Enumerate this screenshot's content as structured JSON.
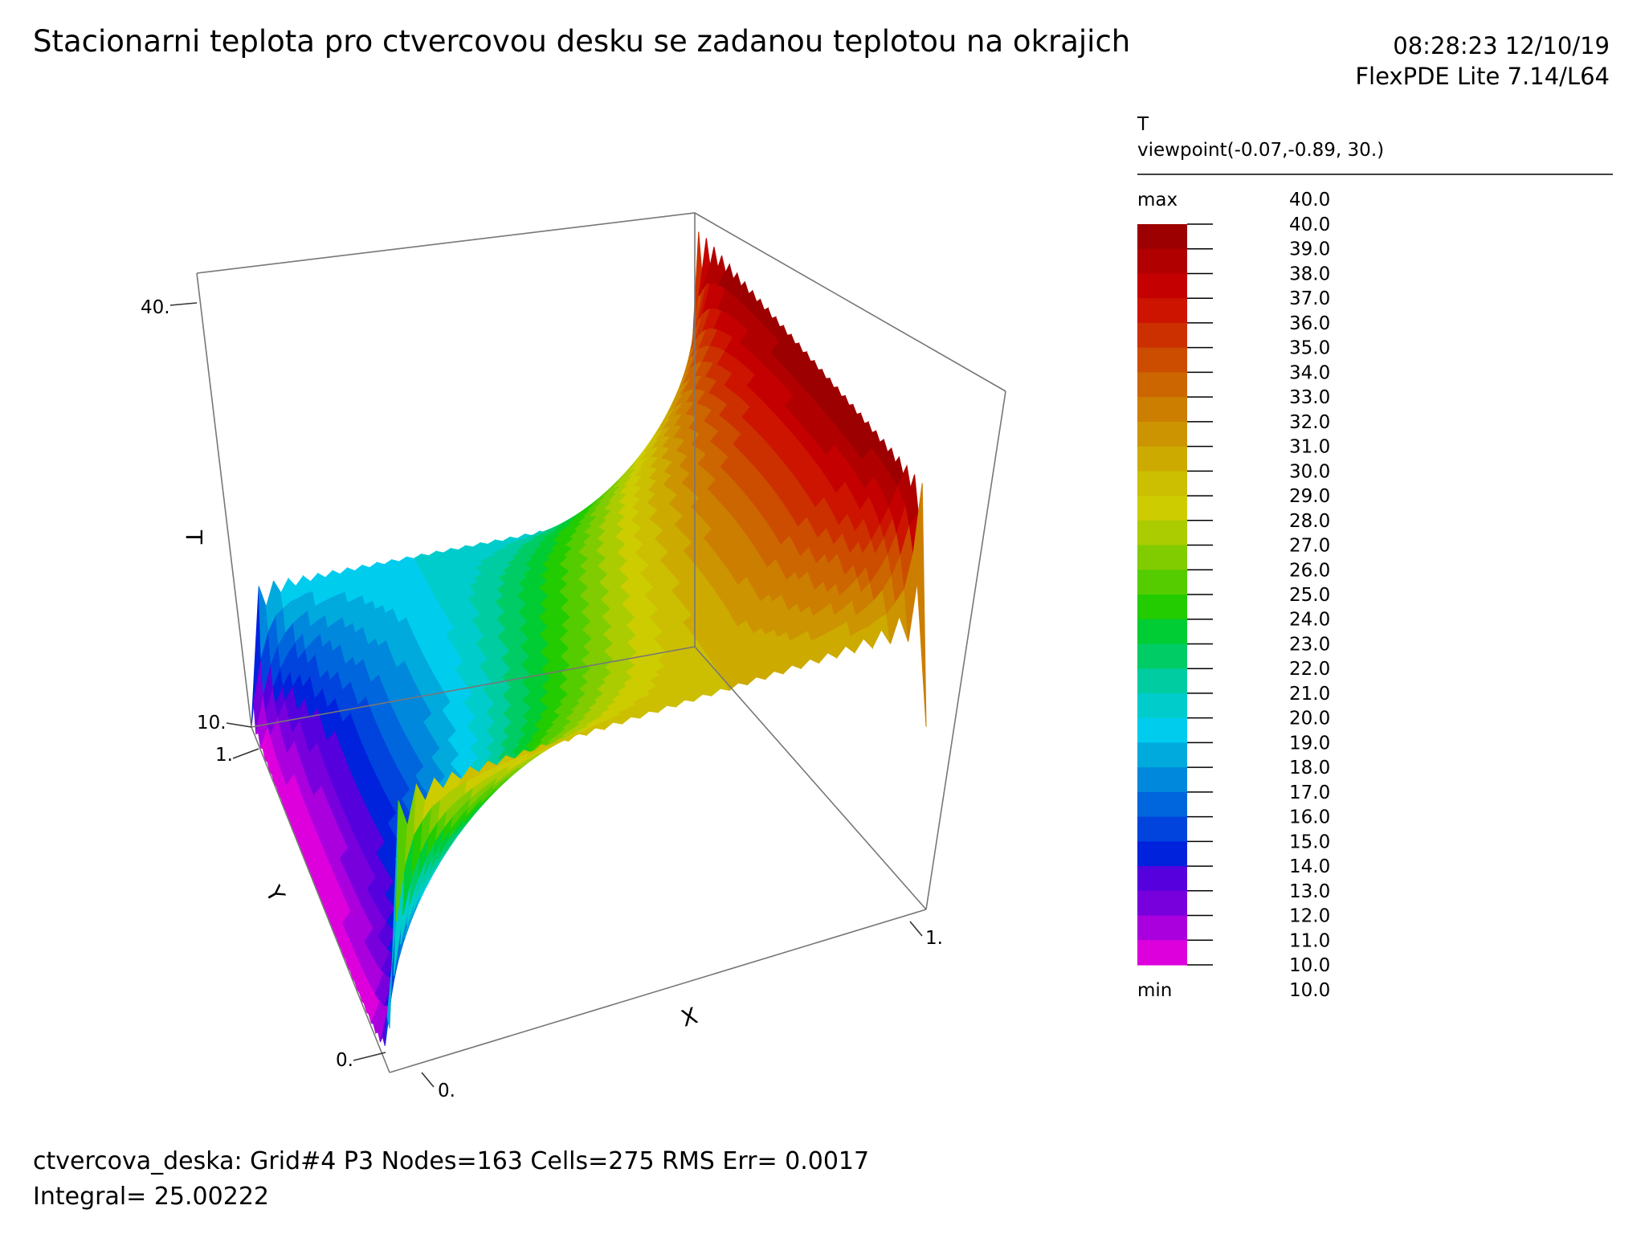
{
  "header": {
    "title": "Stacionarni teplota pro ctvercovou desku se zadanou teplotou na okrajich",
    "timestamp": "08:28:23 12/10/19",
    "app_version": "FlexPDE Lite 7.14/L64"
  },
  "legend": {
    "variable": "T",
    "viewpoint": "viewpoint(-0.07,-0.89, 30.)",
    "max_label": "max",
    "max_value": "40.0",
    "min_label": "min",
    "min_value": "10.0",
    "levels": [
      "40.0",
      "39.0",
      "38.0",
      "37.0",
      "36.0",
      "35.0",
      "34.0",
      "33.0",
      "32.0",
      "31.0",
      "30.0",
      "29.0",
      "28.0",
      "27.0",
      "26.0",
      "25.0",
      "24.0",
      "23.0",
      "22.0",
      "21.0",
      "20.0",
      "19.0",
      "18.0",
      "17.0",
      "16.0",
      "15.0",
      "14.0",
      "13.0",
      "12.0",
      "11.0",
      "10.0"
    ],
    "colors": [
      "#9c0000",
      "#b00000",
      "#c40000",
      "#cc1400",
      "#cc3000",
      "#cc4c00",
      "#cc6600",
      "#cc7e00",
      "#cc9400",
      "#ccaa00",
      "#ccbe00",
      "#cccc00",
      "#aacc00",
      "#80cc00",
      "#55cc00",
      "#22cc00",
      "#00cc33",
      "#00cc66",
      "#00cca2",
      "#00cccc",
      "#00ccee",
      "#00aadd",
      "#0088dd",
      "#0066dd",
      "#0044dd",
      "#0022dd",
      "#5500dd",
      "#7700dd",
      "#aa00dd",
      "#dd00dd",
      "#ff00ee"
    ]
  },
  "axes": {
    "t_label": "T",
    "t_tick_top": "40.",
    "t_tick_bottom": "10.",
    "y_label": "Y",
    "y_tick_far": "1.",
    "y_tick_near": "0.",
    "x_label": "X",
    "x_tick_left": "0.",
    "x_tick_right": "1."
  },
  "chart_data": {
    "type": "surface",
    "title": "Stacionarni teplota pro ctvercovou desku se zadanou teplotou na okrajich",
    "xlabel": "X",
    "ylabel": "Y",
    "zlabel": "T",
    "xlim": [
      0,
      1
    ],
    "ylim": [
      0,
      1
    ],
    "zlim": [
      10,
      40
    ],
    "boundary_values": {
      "x0": 10,
      "x1": 40,
      "y0": 30,
      "y1": 20
    },
    "contour_levels": [
      10,
      11,
      12,
      13,
      14,
      15,
      16,
      17,
      18,
      19,
      20,
      21,
      22,
      23,
      24,
      25,
      26,
      27,
      28,
      29,
      30,
      31,
      32,
      33,
      34,
      35,
      36,
      37,
      38,
      39,
      40
    ],
    "integral": 25.00222
  },
  "footer": {
    "line1": "ctvercova_deska:  Grid#4  P3  Nodes=163 Cells=275 RMS Err= 0.0017",
    "line2": "Integral=  25.00222"
  }
}
